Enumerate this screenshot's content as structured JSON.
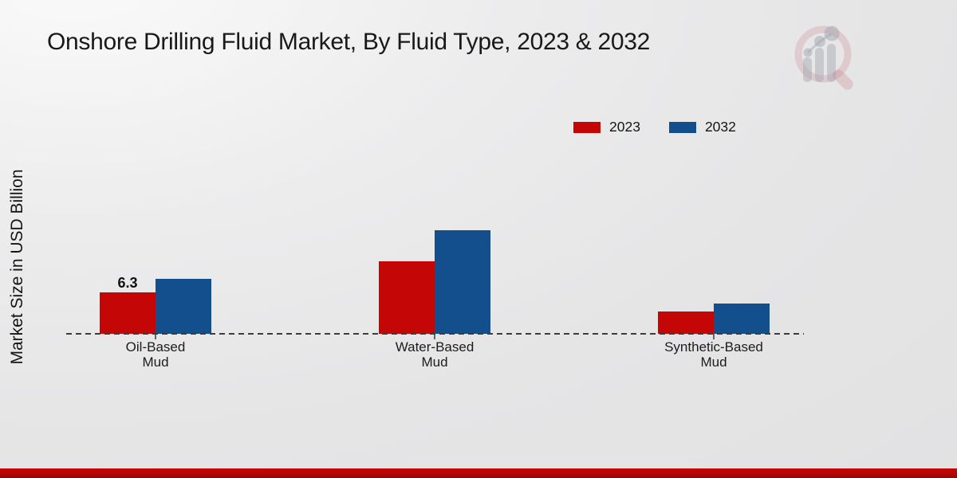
{
  "chart_data": {
    "type": "bar",
    "title": "Onshore Drilling Fluid Market, By Fluid Type, 2023 & 2032",
    "ylabel": "Market Size in USD Billion",
    "xlabel": "",
    "categories": [
      "Oil-Based Mud",
      "Water-Based Mud",
      "Synthetic-Based Mud"
    ],
    "series": [
      {
        "name": "2023",
        "color": "#c50606",
        "values": [
          6.3,
          11.0,
          3.4
        ]
      },
      {
        "name": "2032",
        "color": "#134f8c",
        "values": [
          8.4,
          15.8,
          4.6
        ]
      }
    ],
    "value_labels": [
      {
        "series": 0,
        "category": 0,
        "text": "6.3"
      }
    ],
    "legend_position": "top-right",
    "baseline_style": "dashed",
    "grid": false,
    "ylim": [
      0,
      20
    ]
  },
  "branding": {
    "logo_icon": "magnifier-bar-chart-watermark-icon"
  },
  "colors": {
    "series_2023": "#c50606",
    "series_2032": "#134f8c",
    "axis": "#3c3c3c",
    "footer_top": "#c30505",
    "footer_bottom": "#8e0909",
    "background_from": "#fafafa",
    "background_to": "#e2e2e3"
  }
}
